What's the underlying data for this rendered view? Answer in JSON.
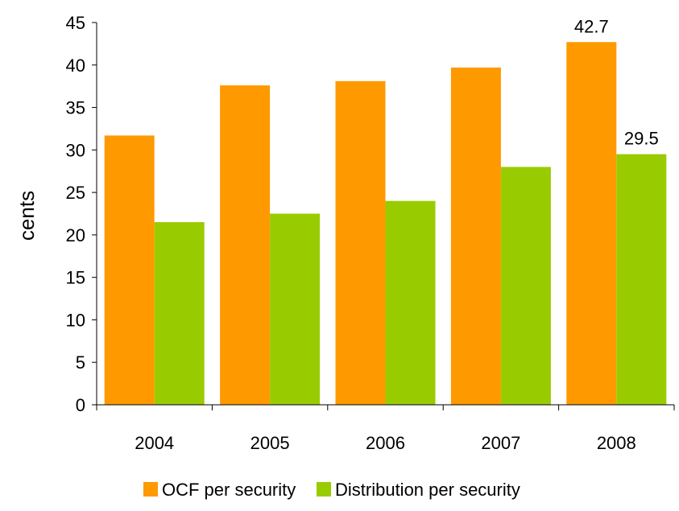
{
  "chart_data": {
    "type": "bar",
    "title": "",
    "xlabel": "",
    "ylabel": "cents",
    "ylim": [
      0,
      45
    ],
    "yticks": [
      0,
      5,
      10,
      15,
      20,
      25,
      30,
      35,
      40,
      45
    ],
    "grid": false,
    "legend_position": "bottom",
    "categories": [
      "2004",
      "2005",
      "2006",
      "2007",
      "2008"
    ],
    "series": [
      {
        "name": "OCF per security",
        "color": "#FF9900",
        "values": [
          31.7,
          37.6,
          38.1,
          39.7,
          42.7
        ],
        "data_labels": [
          null,
          null,
          null,
          null,
          "42.7"
        ]
      },
      {
        "name": "Distribution per security",
        "color": "#99CC00",
        "values": [
          21.5,
          22.5,
          24.0,
          28.0,
          29.5
        ],
        "data_labels": [
          null,
          null,
          null,
          null,
          "29.5"
        ]
      }
    ]
  }
}
